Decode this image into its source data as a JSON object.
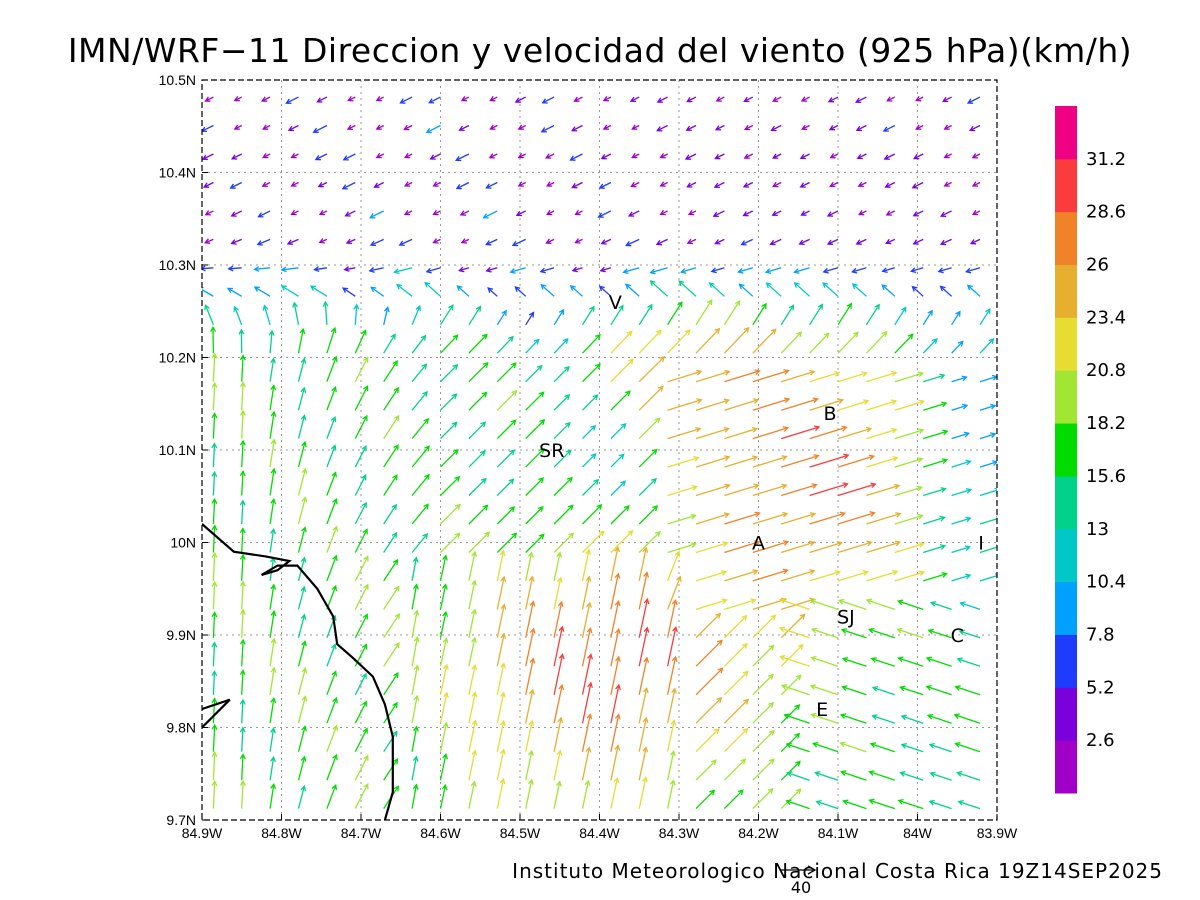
{
  "title": "IMN/WRF−11 Direccion y velocidad del viento (925 hPa)(km/h)",
  "footer": "Instituto Meteorologico Nacional Costa Rica 19Z14SEP2025",
  "reference_vector": {
    "label": "40",
    "speed": 40
  },
  "map": {
    "lon_range": [
      -84.9,
      -83.9
    ],
    "lat_range": [
      9.7,
      10.5
    ],
    "x_ticks": [
      "84.9W",
      "84.8W",
      "84.7W",
      "84.6W",
      "84.5W",
      "84.4W",
      "84.3W",
      "84.2W",
      "84.1W",
      "84W",
      "83.9W"
    ],
    "y_ticks": [
      "9.7N",
      "9.8N",
      "9.9N",
      "10N",
      "10.1N",
      "10.2N",
      "10.3N",
      "10.4N",
      "10.5N"
    ],
    "grid": "dotted",
    "places": [
      {
        "label": "V",
        "lon": -84.38,
        "lat": 10.26
      },
      {
        "label": "SR",
        "lon": -84.46,
        "lat": 10.1
      },
      {
        "label": "B",
        "lon": -84.11,
        "lat": 10.14
      },
      {
        "label": "A",
        "lon": -84.2,
        "lat": 10.0
      },
      {
        "label": "I",
        "lon": -83.92,
        "lat": 10.0
      },
      {
        "label": "SJ",
        "lon": -84.09,
        "lat": 9.92
      },
      {
        "label": "C",
        "lon": -83.95,
        "lat": 9.9
      },
      {
        "label": "E",
        "lon": -84.12,
        "lat": 9.82
      }
    ],
    "coastline": [
      [
        -84.9,
        10.02
      ],
      [
        -84.86,
        9.99
      ],
      [
        -84.82,
        9.985
      ],
      [
        -84.79,
        9.98
      ],
      [
        -84.805,
        9.97
      ],
      [
        -84.825,
        9.965
      ],
      [
        -84.805,
        9.975
      ],
      [
        -84.78,
        9.975
      ],
      [
        -84.755,
        9.95
      ],
      [
        -84.735,
        9.92
      ],
      [
        -84.73,
        9.89
      ],
      [
        -84.71,
        9.875
      ],
      [
        -84.685,
        9.855
      ],
      [
        -84.67,
        9.825
      ],
      [
        -84.66,
        9.79
      ],
      [
        -84.66,
        9.755
      ],
      [
        -84.66,
        9.73
      ],
      [
        -84.67,
        9.7
      ]
    ],
    "coastline_2": [
      [
        -84.9,
        9.82
      ],
      [
        -84.865,
        9.83
      ],
      [
        -84.9,
        9.8
      ]
    ]
  },
  "colorbar": {
    "labels": [
      "2.6",
      "5.2",
      "7.8",
      "10.4",
      "13",
      "15.6",
      "18.2",
      "20.8",
      "23.4",
      "26",
      "28.6",
      "31.2"
    ],
    "colors": [
      "#a000c8",
      "#7a00dc",
      "#1e3cff",
      "#00a0ff",
      "#00c8c8",
      "#00d28c",
      "#00dc00",
      "#a0e632",
      "#e6dc32",
      "#e6af2d",
      "#f08228",
      "#fa3c3c",
      "#f00082"
    ]
  }
}
